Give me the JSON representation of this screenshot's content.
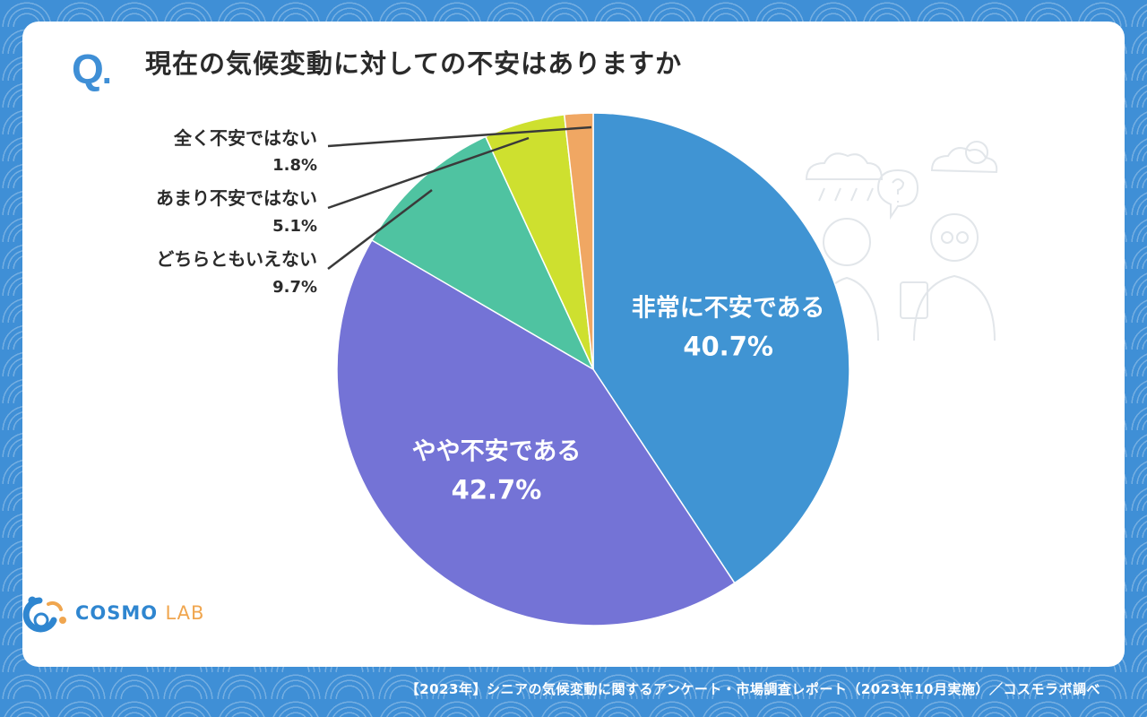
{
  "header": {
    "q_mark": "Q",
    "title": "現在の気候変動に対しての不安はありますか"
  },
  "chart_data": {
    "type": "pie",
    "title": "現在の気候変動に対しての不安はありますか",
    "start_angle_deg": 0,
    "direction": "clockwise",
    "slices": [
      {
        "label": "非常に不安である",
        "value": 40.7,
        "value_label": "40.7%",
        "color": "#4094d3",
        "label_placement": "inside"
      },
      {
        "label": "やや不安である",
        "value": 42.7,
        "value_label": "42.7%",
        "color": "#7473d6",
        "label_placement": "inside"
      },
      {
        "label": "どちらともいえない",
        "value": 9.7,
        "value_label": "9.7%",
        "color": "#4fc3a1",
        "label_placement": "outside"
      },
      {
        "label": "あまり不安ではない",
        "value": 5.1,
        "value_label": "5.1%",
        "color": "#cee02f",
        "label_placement": "outside"
      },
      {
        "label": "全く不安ではない",
        "value": 1.8,
        "value_label": "1.8%",
        "color": "#f0a763",
        "label_placement": "outside"
      }
    ]
  },
  "logo": {
    "name_main": "COSMO",
    "name_sub": "LAB"
  },
  "footer": {
    "source": "【2023年】シニアの気候変動に関するアンケート・市場調査レポート（2023年10月実施）／コスモラボ調べ"
  },
  "colors": {
    "background": "#3f8fd6",
    "card": "#ffffff",
    "accent": "#3f8fd6",
    "logo_sub": "#f0a64f"
  }
}
